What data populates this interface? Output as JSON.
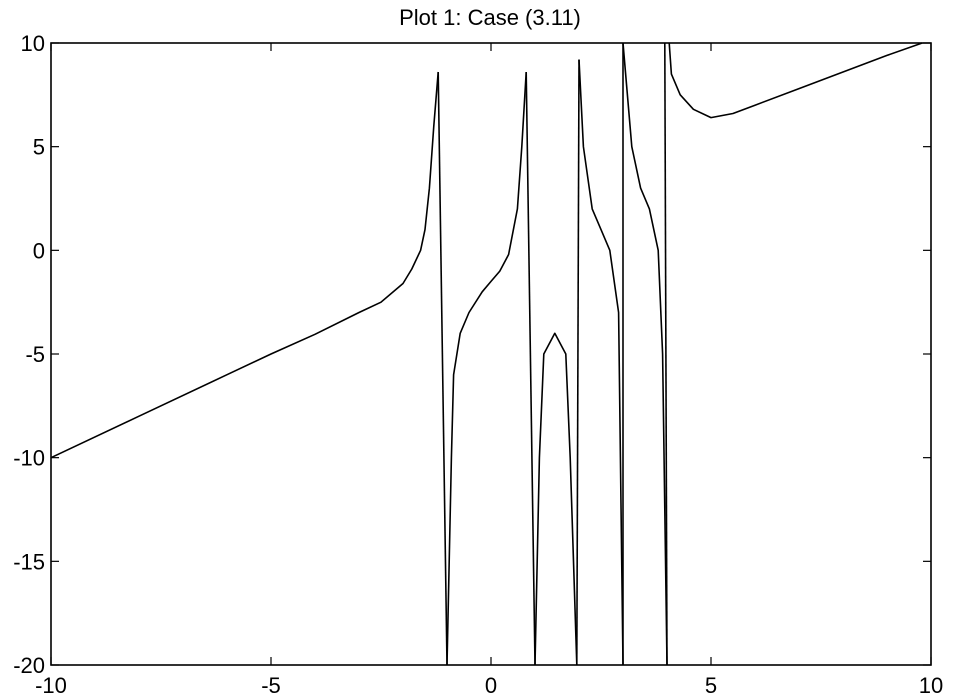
{
  "chart_data": {
    "type": "line",
    "title": "Plot 1: Case (3.11)",
    "xlabel": "",
    "ylabel": "",
    "xlim": [
      -10,
      10
    ],
    "ylim": [
      -20,
      10
    ],
    "grid": false,
    "x_ticks": [
      -10,
      -5,
      0,
      5,
      10
    ],
    "y_ticks": [
      10,
      5,
      0,
      -5,
      -10,
      -15,
      -20
    ],
    "x_tick_labels": [
      "-10",
      "-5",
      "0",
      "5",
      "10"
    ],
    "y_tick_labels": [
      "10",
      "5",
      "0",
      "-5",
      "-10",
      "-15",
      "-20"
    ],
    "line_color": "#000000",
    "segments": [
      [
        [
          -10,
          -10
        ],
        [
          -8,
          -8
        ],
        [
          -6,
          -6
        ],
        [
          -5,
          -5
        ],
        [
          -4,
          -4.05
        ],
        [
          -3,
          -3
        ],
        [
          -2.5,
          -2.5
        ],
        [
          -2,
          -1.6
        ],
        [
          -1.8,
          -0.9
        ],
        [
          -1.6,
          0
        ],
        [
          -1.5,
          1
        ],
        [
          -1.4,
          3
        ],
        [
          -1.3,
          6
        ],
        [
          -1.2,
          8.6
        ]
      ],
      [
        [
          -1.2,
          8.6
        ],
        [
          -1.0,
          -20
        ]
      ],
      [
        [
          -1.0,
          -20
        ],
        [
          -0.9,
          -10
        ],
        [
          -0.85,
          -6
        ],
        [
          -0.7,
          -4
        ],
        [
          -0.5,
          -3
        ],
        [
          -0.2,
          -2
        ],
        [
          0,
          -1.5
        ],
        [
          0.2,
          -1
        ],
        [
          0.4,
          -0.2
        ],
        [
          0.6,
          2
        ],
        [
          0.7,
          5
        ],
        [
          0.8,
          8.6
        ]
      ],
      [
        [
          0.8,
          8.6
        ],
        [
          1.0,
          -20
        ]
      ],
      [
        [
          1.0,
          -20
        ],
        [
          1.1,
          -10
        ],
        [
          1.2,
          -5
        ],
        [
          1.45,
          -4.0
        ],
        [
          1.7,
          -5
        ],
        [
          1.8,
          -10
        ],
        [
          1.95,
          -20
        ]
      ],
      [
        [
          1.95,
          -20
        ],
        [
          2.0,
          9.2
        ]
      ],
      [
        [
          2.0,
          9.2
        ],
        [
          2.1,
          5
        ],
        [
          2.3,
          2
        ],
        [
          2.5,
          1
        ],
        [
          2.7,
          0
        ],
        [
          2.9,
          -3
        ],
        [
          3.0,
          -20
        ]
      ],
      [
        [
          3.0,
          -20
        ],
        [
          3.0,
          10
        ]
      ],
      [
        [
          3.0,
          10
        ],
        [
          3.2,
          5
        ],
        [
          3.4,
          3
        ],
        [
          3.6,
          2
        ],
        [
          3.8,
          0
        ],
        [
          3.9,
          -5
        ],
        [
          4.0,
          -20
        ]
      ],
      [
        [
          4.0,
          -20
        ],
        [
          3.95,
          10
        ]
      ],
      [
        [
          4.05,
          10
        ],
        [
          4.1,
          8.5
        ],
        [
          4.3,
          7.5
        ],
        [
          4.6,
          6.8
        ],
        [
          5.0,
          6.4
        ],
        [
          5.5,
          6.6
        ],
        [
          6,
          7
        ],
        [
          7,
          7.8
        ],
        [
          8,
          8.6
        ],
        [
          9,
          9.4
        ],
        [
          9.8,
          10
        ]
      ]
    ]
  }
}
